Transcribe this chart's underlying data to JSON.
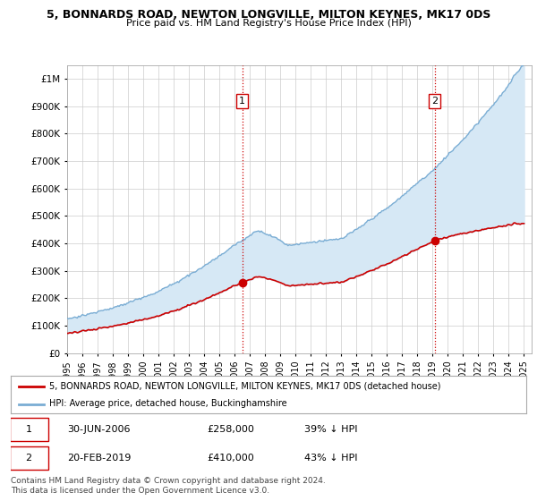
{
  "title": "5, BONNARDS ROAD, NEWTON LONGVILLE, MILTON KEYNES, MK17 0DS",
  "subtitle": "Price paid vs. HM Land Registry's House Price Index (HPI)",
  "ytick_values": [
    0,
    100000,
    200000,
    300000,
    400000,
    500000,
    600000,
    700000,
    800000,
    900000,
    1000000
  ],
  "ylim": [
    0,
    1050000
  ],
  "xlim_start": 1995.0,
  "xlim_end": 2025.5,
  "sale1_date": 2006.5,
  "sale1_price": 258000,
  "sale2_date": 2019.125,
  "sale2_price": 410000,
  "hpi_color": "#7aadd4",
  "hpi_fill_color": "#d6e8f5",
  "sale_color": "#cc0000",
  "vline_color": "#cc0000",
  "background_color": "#ffffff",
  "grid_color": "#cccccc",
  "legend_label_sale": "5, BONNARDS ROAD, NEWTON LONGVILLE, MILTON KEYNES, MK17 0DS (detached house)",
  "legend_label_hpi": "HPI: Average price, detached house, Buckinghamshire",
  "footer": "Contains HM Land Registry data © Crown copyright and database right 2024.\nThis data is licensed under the Open Government Licence v3.0.",
  "xtick_years": [
    1995,
    1996,
    1997,
    1998,
    1999,
    2000,
    2001,
    2002,
    2003,
    2004,
    2005,
    2006,
    2007,
    2008,
    2009,
    2010,
    2011,
    2012,
    2013,
    2014,
    2015,
    2016,
    2017,
    2018,
    2019,
    2020,
    2021,
    2022,
    2023,
    2024,
    2025
  ]
}
